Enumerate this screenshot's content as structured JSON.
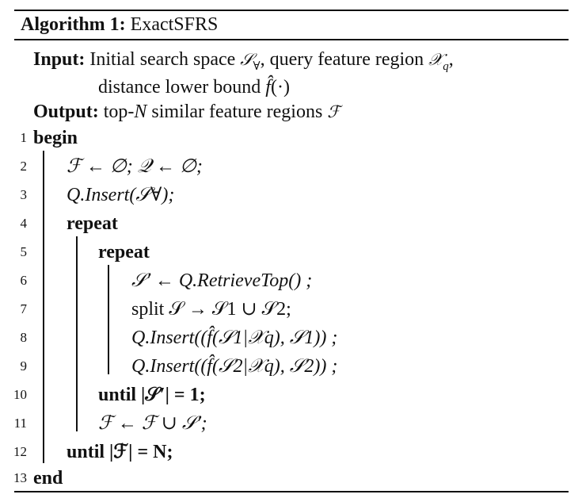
{
  "algorithm": {
    "label": "Algorithm 1:",
    "name": "ExactSFRS"
  },
  "io": {
    "input_kw": "Input:",
    "input_text_1a": "Initial search space ",
    "input_sym_1": "𝒮",
    "input_sub_1": "∀",
    "input_text_1b": ", query feature region ",
    "input_sym_2": "𝒳",
    "input_sub_2": "q",
    "input_text_1c": ",",
    "input_text_2a": "distance lower bound ",
    "input_sym_3": "f̂",
    "input_text_2b": "(·)",
    "output_kw": "Output:",
    "output_text_a": "top-",
    "output_sym_n": "N",
    "output_text_b": " similar feature regions ",
    "output_sym_f": "ℱ"
  },
  "lines": [
    {
      "num": "1",
      "text": "begin"
    },
    {
      "num": "2",
      "text": "ℱ ← ∅; 𝒬 ← ∅;"
    },
    {
      "num": "3",
      "text": "Q.Insert(𝒮∀);"
    },
    {
      "num": "4",
      "text": "repeat"
    },
    {
      "num": "5",
      "text": "repeat"
    },
    {
      "num": "6",
      "text": "𝒮′ ← Q.RetrieveTop() ;"
    },
    {
      "num": "7",
      "text": "split 𝒮 → 𝒮1 ∪ 𝒮2;"
    },
    {
      "num": "8",
      "text": "Q.Insert((f̂(𝒮1|𝒳q), 𝒮1)) ;"
    },
    {
      "num": "9",
      "text": "Q.Insert((f̂(𝒮2|𝒳q), 𝒮2)) ;"
    },
    {
      "num": "10",
      "text": "until |𝒮′| = 1;"
    },
    {
      "num": "11",
      "text": "ℱ ← ℱ ∪ 𝒮′;"
    },
    {
      "num": "12",
      "text": "until |ℱ| = N;"
    },
    {
      "num": "13",
      "text": "end"
    }
  ]
}
